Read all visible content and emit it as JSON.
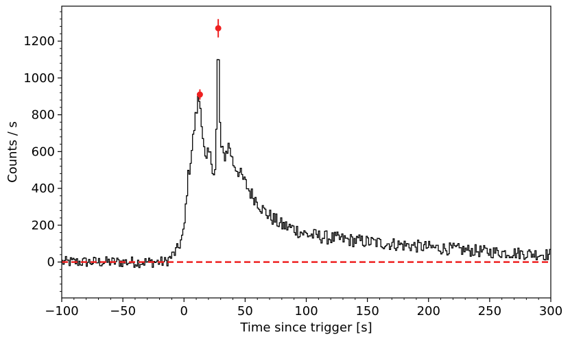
{
  "chart_data": {
    "type": "line",
    "title": "",
    "xlabel": "Time since trigger [s]",
    "ylabel": "Counts / s",
    "xlim": [
      -100,
      300
    ],
    "ylim": [
      -195,
      1390
    ],
    "x_ticks": [
      -100,
      -50,
      0,
      50,
      100,
      150,
      200,
      250,
      300
    ],
    "x_tick_labels": [
      "−100",
      "−50",
      "0",
      "50",
      "100",
      "150",
      "200",
      "250",
      "300"
    ],
    "y_ticks": [
      0,
      200,
      400,
      600,
      800,
      1000,
      1200
    ],
    "y_tick_labels": [
      "0",
      "200",
      "400",
      "600",
      "800",
      "1000",
      "1200"
    ],
    "grid": false,
    "bin_width": 1,
    "series": [
      {
        "style": "step",
        "color": "#000000",
        "anchors": [
          [
            -100,
            0
          ],
          [
            -15,
            0
          ],
          [
            -10,
            30
          ],
          [
            -5,
            70
          ],
          [
            0,
            160
          ],
          [
            3,
            440
          ],
          [
            6,
            580
          ],
          [
            9,
            760
          ],
          [
            12,
            900
          ],
          [
            14,
            820
          ],
          [
            16,
            640
          ],
          [
            18,
            520
          ],
          [
            20,
            600
          ],
          [
            22,
            560
          ],
          [
            25,
            480
          ],
          [
            26,
            520
          ],
          [
            27,
            900
          ],
          [
            28,
            1270
          ],
          [
            29,
            900
          ],
          [
            30,
            620
          ],
          [
            33,
            570
          ],
          [
            37,
            640
          ],
          [
            40,
            540
          ],
          [
            45,
            490
          ],
          [
            50,
            430
          ],
          [
            55,
            370
          ],
          [
            60,
            330
          ],
          [
            65,
            280
          ],
          [
            70,
            250
          ],
          [
            80,
            200
          ],
          [
            90,
            180
          ],
          [
            100,
            150
          ],
          [
            120,
            130
          ],
          [
            150,
            110
          ],
          [
            200,
            80
          ],
          [
            250,
            55
          ],
          [
            300,
            40
          ]
        ],
        "noise_amplitude": 40
      },
      {
        "style": "points",
        "color": "#ee2020",
        "points": [
          {
            "x": 13,
            "y": 910,
            "err": 28
          },
          {
            "x": 28,
            "y": 1270,
            "err": 50
          }
        ]
      },
      {
        "style": "dashed-baseline",
        "color": "#ee2020",
        "y": 0
      }
    ]
  }
}
